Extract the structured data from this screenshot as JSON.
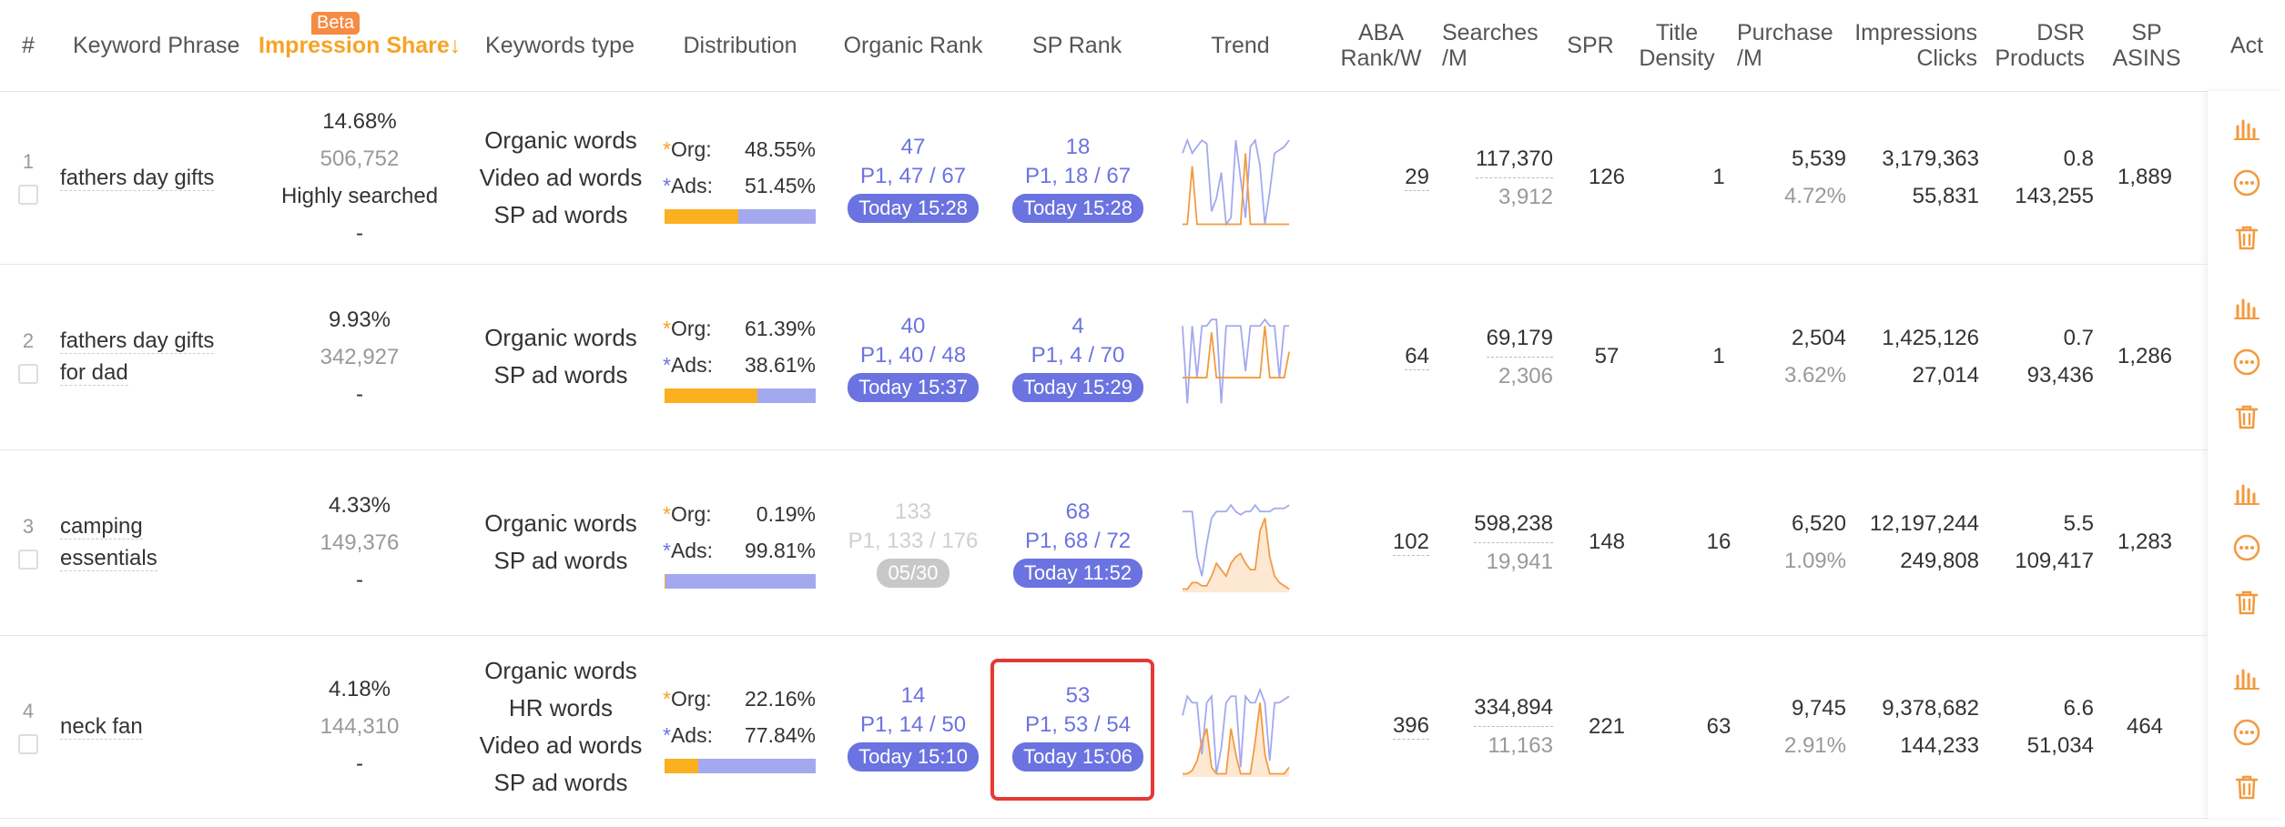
{
  "headers": {
    "num": "#",
    "keyword": "Keyword Phrase",
    "impression_share": "Impression Share↓",
    "beta": "Beta",
    "keyword_type": "Keywords type",
    "distribution": "Distribution",
    "organic_rank": "Organic Rank",
    "sp_rank": "SP Rank",
    "trend": "Trend",
    "aba_rank_l1": "ABA",
    "aba_rank_l2": "Rank/W",
    "searches_l1": "Searches",
    "searches_l2": "/M",
    "spr": "SPR",
    "title_density_l1": "Title",
    "title_density_l2": "Density",
    "purchase_l1": "Purchase",
    "purchase_l2": "/M",
    "impressions_l1": "Impressions",
    "impressions_l2": "Clicks",
    "dsr_l1": "DSR",
    "dsr_l2": "Products",
    "sp_asins_l1": "SP",
    "sp_asins_l2": "ASINS",
    "act": "Act"
  },
  "rows": [
    {
      "num": "1",
      "keyword": "fathers day gifts",
      "keyword_l2": "",
      "imp_pct": "14.68%",
      "imp_count": "506,752",
      "imp_note": "Highly searched",
      "imp_dash": "-",
      "types": [
        "Organic words",
        "Video ad words",
        "SP ad words"
      ],
      "org_label": "Org:",
      "org_pct": "48.55%",
      "org_ratio": 0.4855,
      "ads_label": "Ads:",
      "ads_pct": "51.45%",
      "organic_rank": {
        "top": "47",
        "mid": "P1, 47 / 67",
        "pill": "Today 15:28",
        "dim": false
      },
      "sp_rank": {
        "top": "18",
        "mid": "P1, 18 / 67",
        "pill": "Today 15:28"
      },
      "aba": "29",
      "searches": "117,370",
      "searches_sub": "3,912",
      "spr": "126",
      "title_density": "1",
      "purchase": "5,539",
      "purchase_sub": "4.72%",
      "impressions": "3,179,363",
      "clicks": "55,831",
      "dsr": "0.8",
      "products": "143,255",
      "sp_asins": "1,889"
    },
    {
      "num": "2",
      "keyword": "fathers day gifts",
      "keyword_l2": "for dad",
      "imp_pct": "9.93%",
      "imp_count": "342,927",
      "imp_note": "",
      "imp_dash": "-",
      "types": [
        "Organic words",
        "SP ad words"
      ],
      "org_label": "Org:",
      "org_pct": "61.39%",
      "org_ratio": 0.6139,
      "ads_label": "Ads:",
      "ads_pct": "38.61%",
      "organic_rank": {
        "top": "40",
        "mid": "P1, 40 / 48",
        "pill": "Today 15:37",
        "dim": false
      },
      "sp_rank": {
        "top": "4",
        "mid": "P1, 4 / 70",
        "pill": "Today 15:29"
      },
      "aba": "64",
      "searches": "69,179",
      "searches_sub": "2,306",
      "spr": "57",
      "title_density": "1",
      "purchase": "2,504",
      "purchase_sub": "3.62%",
      "impressions": "1,425,126",
      "clicks": "27,014",
      "dsr": "0.7",
      "products": "93,436",
      "sp_asins": "1,286"
    },
    {
      "num": "3",
      "keyword": "camping",
      "keyword_l2": "essentials",
      "imp_pct": "4.33%",
      "imp_count": "149,376",
      "imp_note": "",
      "imp_dash": "-",
      "types": [
        "Organic words",
        "SP ad words"
      ],
      "org_label": "Org:",
      "org_pct": "0.19%",
      "org_ratio": 0.0019,
      "ads_label": "Ads:",
      "ads_pct": "99.81%",
      "organic_rank": {
        "top": "133",
        "mid": "P1, 133 / 176",
        "pill": "05/30",
        "dim": true
      },
      "sp_rank": {
        "top": "68",
        "mid": "P1, 68 / 72",
        "pill": "Today 11:52"
      },
      "aba": "102",
      "searches": "598,238",
      "searches_sub": "19,941",
      "spr": "148",
      "title_density": "16",
      "purchase": "6,520",
      "purchase_sub": "1.09%",
      "impressions": "12,197,244",
      "clicks": "249,808",
      "dsr": "5.5",
      "products": "109,417",
      "sp_asins": "1,283"
    },
    {
      "num": "4",
      "keyword": "neck fan",
      "keyword_l2": "",
      "imp_pct": "4.18%",
      "imp_count": "144,310",
      "imp_note": "",
      "imp_dash": "-",
      "types": [
        "Organic words",
        "HR words",
        "Video ad words",
        "SP ad words"
      ],
      "org_label": "Org:",
      "org_pct": "22.16%",
      "org_ratio": 0.2216,
      "ads_label": "Ads:",
      "ads_pct": "77.84%",
      "organic_rank": {
        "top": "14",
        "mid": "P1, 14 / 50",
        "pill": "Today 15:10",
        "dim": false
      },
      "sp_rank": {
        "top": "53",
        "mid": "P1, 53 / 54",
        "pill": "Today 15:06"
      },
      "aba": "396",
      "searches": "334,894",
      "searches_sub": "11,163",
      "spr": "221",
      "title_density": "63",
      "purchase": "9,745",
      "purchase_sub": "2.91%",
      "impressions": "9,378,682",
      "clicks": "144,233",
      "dsr": "6.6",
      "products": "51,034",
      "sp_asins": "464"
    }
  ],
  "colors": {
    "accent_orange": "#f7a325",
    "rank_blue": "#6b73e0",
    "bar_ads": "#a3a8ef",
    "bar_org": "#fbb01f",
    "highlight_red": "#e53935"
  },
  "icons": [
    "bar-chart-icon",
    "more-icon",
    "trash-icon"
  ]
}
